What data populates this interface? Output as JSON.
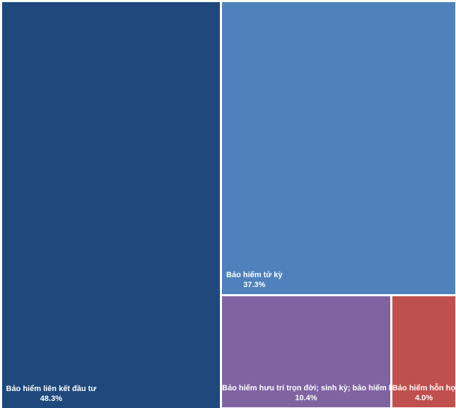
{
  "chart_data": {
    "type": "treemap",
    "title": "",
    "items": [
      {
        "label": "Bảo hiểm liên kết đầu tư",
        "value": 48.3,
        "value_label": "48.3%",
        "color": "#1f497d"
      },
      {
        "label": "Bảo hiểm tử kỳ",
        "value": 37.3,
        "value_label": "37.3%",
        "color": "#4f81bd"
      },
      {
        "label": "Bảo hiểm hưu trí trọn đời; sinh kỳ; bảo hiểm khác",
        "value": 10.4,
        "value_label": "10.4%",
        "color": "#8064a2"
      },
      {
        "label": "Bảo hiểm hỗn hợp",
        "value": 4.0,
        "value_label": "4.0%",
        "color": "#c0504d"
      }
    ]
  }
}
